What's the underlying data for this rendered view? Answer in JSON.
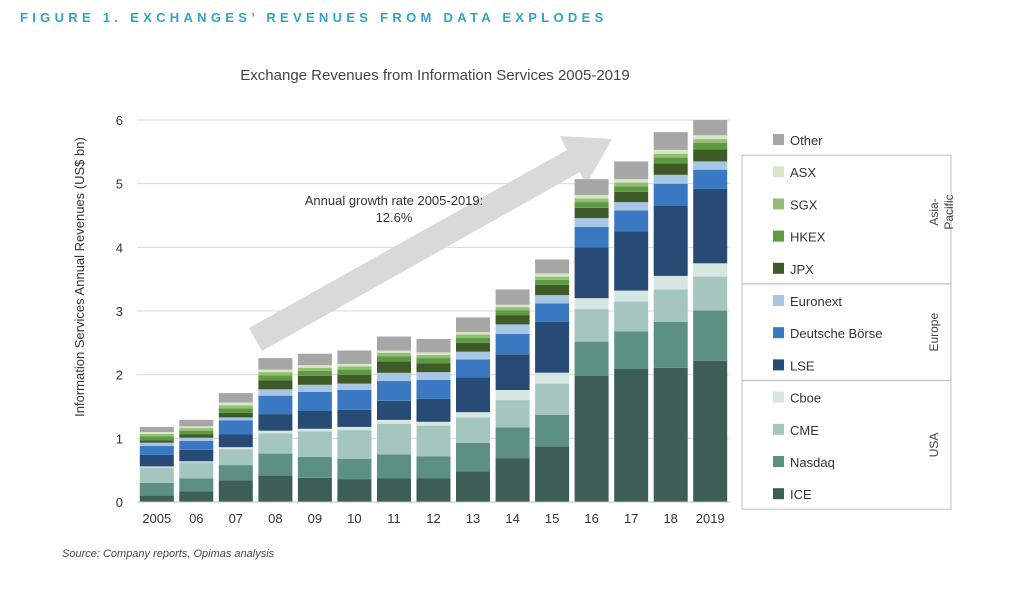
{
  "figure_title": "FIGURE 1. EXCHANGES’ REVENUES FROM DATA EXPLODES",
  "source": "Source: Company reports, Opimas analysis",
  "colors": {
    "figure_title": "#2fa4c9",
    "arrow": "#d9d9d9"
  },
  "chart_data": {
    "type": "bar",
    "stacked": true,
    "title": "Exchange Revenues from Information Services 2005-2019",
    "xlabel": "",
    "ylabel": "Information Services Annual Revenues (US$ bn)",
    "ylim": [
      0,
      6
    ],
    "yticks": [
      0,
      1,
      2,
      3,
      4,
      5,
      6
    ],
    "grid": true,
    "legend_placement": "right",
    "categories": [
      "2005",
      "06",
      "07",
      "08",
      "09",
      "10",
      "11",
      "12",
      "13",
      "14",
      "15",
      "16",
      "17",
      "18",
      "2019"
    ],
    "series": [
      {
        "name": "ICE",
        "color": "#3d5e54",
        "values": [
          0.1,
          0.17,
          0.34,
          0.42,
          0.38,
          0.36,
          0.37,
          0.37,
          0.48,
          0.69,
          0.87,
          1.98,
          2.09,
          2.11,
          2.22
        ]
      },
      {
        "name": "Nasdaq",
        "color": "#5c9182",
        "values": [
          0.2,
          0.2,
          0.24,
          0.34,
          0.33,
          0.32,
          0.38,
          0.35,
          0.45,
          0.48,
          0.5,
          0.54,
          0.59,
          0.72,
          0.79
        ]
      },
      {
        "name": "CME",
        "color": "#a5c6bd",
        "values": [
          0.24,
          0.25,
          0.25,
          0.32,
          0.4,
          0.45,
          0.48,
          0.48,
          0.4,
          0.43,
          0.49,
          0.51,
          0.47,
          0.51,
          0.53
        ]
      },
      {
        "name": "Cboe",
        "color": "#d6e6e1",
        "values": [
          0.02,
          0.02,
          0.03,
          0.04,
          0.04,
          0.05,
          0.06,
          0.06,
          0.08,
          0.16,
          0.17,
          0.17,
          0.17,
          0.21,
          0.21
        ]
      },
      {
        "name": "LSE",
        "color": "#284b75",
        "values": [
          0.18,
          0.18,
          0.2,
          0.26,
          0.28,
          0.27,
          0.3,
          0.36,
          0.55,
          0.56,
          0.8,
          0.8,
          0.93,
          1.1,
          1.17
        ]
      },
      {
        "name": "Deutsche Börse",
        "color": "#3a78c1",
        "values": [
          0.14,
          0.14,
          0.22,
          0.29,
          0.3,
          0.31,
          0.31,
          0.3,
          0.28,
          0.32,
          0.29,
          0.32,
          0.33,
          0.35,
          0.3
        ]
      },
      {
        "name": "Euronext",
        "color": "#a8c5e3",
        "values": [
          0.05,
          0.05,
          0.05,
          0.1,
          0.11,
          0.1,
          0.13,
          0.12,
          0.12,
          0.15,
          0.13,
          0.14,
          0.13,
          0.14,
          0.13
        ]
      },
      {
        "name": "JPX",
        "color": "#3d5a27",
        "values": [
          0.04,
          0.05,
          0.07,
          0.14,
          0.14,
          0.14,
          0.18,
          0.14,
          0.14,
          0.14,
          0.16,
          0.16,
          0.16,
          0.18,
          0.19
        ]
      },
      {
        "name": "HKEX",
        "color": "#5e9a42",
        "values": [
          0.06,
          0.06,
          0.07,
          0.08,
          0.08,
          0.08,
          0.08,
          0.08,
          0.08,
          0.08,
          0.08,
          0.09,
          0.09,
          0.09,
          0.1
        ]
      },
      {
        "name": "SGX",
        "color": "#93bf74",
        "values": [
          0.04,
          0.04,
          0.05,
          0.05,
          0.05,
          0.05,
          0.05,
          0.05,
          0.05,
          0.05,
          0.05,
          0.06,
          0.06,
          0.06,
          0.06
        ]
      },
      {
        "name": "ASX",
        "color": "#d6e8c6",
        "values": [
          0.03,
          0.03,
          0.04,
          0.04,
          0.04,
          0.04,
          0.04,
          0.04,
          0.04,
          0.04,
          0.05,
          0.05,
          0.05,
          0.06,
          0.06
        ]
      },
      {
        "name": "Other",
        "color": "#a6a6a6",
        "values": [
          0.08,
          0.1,
          0.15,
          0.18,
          0.18,
          0.21,
          0.22,
          0.21,
          0.23,
          0.24,
          0.22,
          0.25,
          0.28,
          0.28,
          0.24
        ]
      }
    ],
    "legend_order": [
      "Other",
      "ASX",
      "SGX",
      "HKEX",
      "JPX",
      "Euronext",
      "Deutsche Börse",
      "LSE",
      "Cboe",
      "CME",
      "Nasdaq",
      "ICE"
    ],
    "legend_groups": [
      {
        "name": "Asia-Pacific",
        "lines": [
          "Asia-",
          "Pacific"
        ],
        "members": [
          "ASX",
          "SGX",
          "HKEX",
          "JPX"
        ]
      },
      {
        "name": "Europe",
        "lines": [
          "Europe"
        ],
        "members": [
          "Euronext",
          "Deutsche Börse",
          "LSE"
        ]
      },
      {
        "name": "USA",
        "lines": [
          "USA"
        ],
        "members": [
          "Cboe",
          "CME",
          "Nasdaq",
          "ICE"
        ]
      }
    ],
    "annotations": [
      {
        "id": "growth-rate",
        "lines": [
          "Annual growth rate 2005-2019:",
          "12.6%"
        ]
      }
    ]
  }
}
